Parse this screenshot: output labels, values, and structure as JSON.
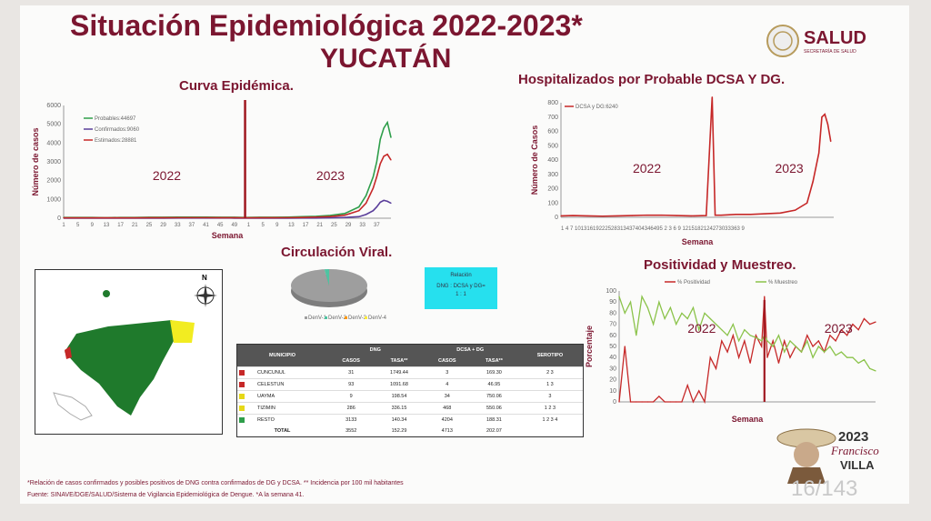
{
  "header": {
    "title_line1": "Situación Epidemiológica 2022-2023*",
    "title_line2": "YUCATÁN",
    "logo_text": "SALUD",
    "logo_subtext": "SECRETARÍA DE SALUD"
  },
  "colors": {
    "brand": "#7b1630",
    "green": "#2e9e4a",
    "red": "#c62828",
    "purple": "#5a3e9a"
  },
  "charts": {
    "curva": {
      "title": "Curva Epidémica.",
      "xlabel": "Semana",
      "ylabel": "Número de casos",
      "year_labels": [
        "2022",
        "2023"
      ],
      "legend": [
        "Probables:44697",
        "Confirmados:9060",
        "Estimados:28881"
      ],
      "yticks": [
        "0",
        "1000",
        "2000",
        "3000",
        "4000",
        "5000",
        "6000"
      ]
    },
    "hosp": {
      "title": "Hospitalizados por Probable DCSA Y DG.",
      "xlabel": "Semana",
      "ylabel": "Número de Casos",
      "legend": [
        "DCSA y DG:6240"
      ],
      "year_labels": [
        "2022",
        "2023"
      ],
      "yticks": [
        "0",
        "100",
        "200",
        "300",
        "400",
        "500",
        "600",
        "700",
        "800"
      ],
      "xticks_text": "1 4 7 10131619222528313437404346495 2 3 6 9 1215182124273033363 9"
    },
    "positividad": {
      "title": "Positividad y Muestreo.",
      "xlabel": "Semana",
      "ylabel": "Porcentaje",
      "legend": [
        "% Positividad",
        "% Muestreo"
      ],
      "year_labels": [
        "2022",
        "2023"
      ],
      "yticks": [
        "0",
        "10",
        "20",
        "30",
        "40",
        "50",
        "60",
        "70",
        "80",
        "90",
        "100"
      ]
    },
    "circulacion": {
      "title": "Circulación Viral.",
      "legend": [
        "DenV-1",
        "DenV-2",
        "DenV-3",
        "DenV-4"
      ]
    }
  },
  "chart_data": [
    {
      "type": "line",
      "title": "Curva Epidémica.",
      "xlabel": "Semana",
      "ylabel": "Número de casos",
      "ylim": [
        0,
        6000
      ],
      "x": [
        1,
        5,
        9,
        13,
        17,
        21,
        25,
        29,
        33,
        37,
        41,
        45,
        49,
        52,
        56,
        60,
        64,
        68,
        72,
        76,
        80,
        84,
        86,
        88,
        89,
        90,
        91,
        92,
        93
      ],
      "series": [
        {
          "name": "Probables:44697",
          "values": [
            40,
            40,
            40,
            30,
            40,
            40,
            50,
            50,
            60,
            60,
            60,
            50,
            50,
            40,
            50,
            50,
            60,
            80,
            100,
            150,
            250,
            600,
            1200,
            2200,
            3000,
            4200,
            4800,
            5100,
            4300
          ]
        },
        {
          "name": "Confirmados:9060",
          "values": [
            5,
            5,
            5,
            5,
            5,
            5,
            5,
            5,
            10,
            10,
            10,
            10,
            5,
            5,
            5,
            5,
            5,
            10,
            10,
            20,
            40,
            80,
            200,
            400,
            600,
            850,
            950,
            900,
            800
          ]
        },
        {
          "name": "Estimados:28881",
          "values": [
            20,
            20,
            20,
            20,
            20,
            20,
            25,
            25,
            30,
            30,
            30,
            25,
            25,
            20,
            25,
            25,
            30,
            40,
            60,
            90,
            160,
            400,
            800,
            1600,
            2200,
            2900,
            3300,
            3400,
            3100
          ]
        }
      ]
    },
    {
      "type": "line",
      "title": "Hospitalizados por Probable DCSA Y DG.",
      "xlabel": "Semana",
      "ylabel": "Número de Casos",
      "ylim": [
        0,
        800
      ],
      "x": [
        1,
        5,
        10,
        15,
        20,
        25,
        30,
        35,
        40,
        45,
        50,
        52,
        53,
        55,
        60,
        65,
        70,
        75,
        80,
        84,
        86,
        88,
        89,
        90,
        91,
        92
      ],
      "series": [
        {
          "name": "DCSA y DG:6240",
          "values": [
            10,
            12,
            10,
            8,
            10,
            12,
            15,
            15,
            12,
            10,
            12,
            840,
            15,
            15,
            20,
            20,
            25,
            30,
            50,
            100,
            250,
            450,
            700,
            720,
            650,
            530
          ]
        }
      ]
    },
    {
      "type": "line",
      "title": "Positividad y Muestreo.",
      "xlabel": "Semana",
      "ylabel": "Porcentaje",
      "ylim": [
        0,
        100
      ],
      "x": [
        1,
        3,
        5,
        7,
        9,
        11,
        13,
        15,
        17,
        19,
        21,
        23,
        25,
        27,
        29,
        31,
        33,
        35,
        37,
        39,
        41,
        43,
        45,
        47,
        49,
        51,
        52,
        53,
        55,
        57,
        59,
        61,
        63,
        65,
        67,
        69,
        71,
        73,
        75,
        77,
        79,
        81,
        83,
        85,
        87,
        89,
        91
      ],
      "series": [
        {
          "name": "% Positividad",
          "values": [
            0,
            50,
            0,
            0,
            0,
            0,
            0,
            5,
            0,
            0,
            0,
            0,
            15,
            0,
            10,
            0,
            40,
            30,
            55,
            45,
            60,
            40,
            55,
            35,
            60,
            50,
            95,
            40,
            55,
            35,
            55,
            40,
            50,
            45,
            60,
            50,
            55,
            45,
            60,
            55,
            65,
            60,
            70,
            65,
            75,
            70,
            72
          ]
        },
        {
          "name": "% Muestreo",
          "values": [
            95,
            80,
            90,
            60,
            95,
            85,
            70,
            90,
            75,
            85,
            70,
            80,
            75,
            85,
            65,
            80,
            75,
            70,
            65,
            60,
            70,
            55,
            65,
            60,
            58,
            55,
            60,
            55,
            50,
            60,
            45,
            55,
            50,
            45,
            55,
            40,
            50,
            45,
            50,
            42,
            45,
            40,
            40,
            35,
            38,
            30,
            28
          ]
        }
      ]
    },
    {
      "type": "pie",
      "title": "Circulación Viral.",
      "categories": [
        "DenV-1",
        "DenV-2",
        "DenV-3",
        "DenV-4"
      ],
      "values": [
        98,
        2,
        0,
        0
      ]
    }
  ],
  "relacion_box": {
    "title": "Relación",
    "line1": "DNG : DCSA y DG=",
    "line2": "1 : 1"
  },
  "map": {
    "north_label": "N"
  },
  "table": {
    "headers": {
      "municipio": "MUNICIPIO",
      "dng": "DNG",
      "dcsa": "DCSA + DG",
      "serotipo": "SEROTIPO",
      "casos": "CASOS",
      "tasa": "TASA**"
    },
    "rows": [
      {
        "color": "#c62828",
        "municipio": "CUNCUNUL",
        "dng_casos": "31",
        "dng_tasa": "1749.44",
        "dcsa_casos": "3",
        "dcsa_tasa": "169.30",
        "serotipo": "2  3"
      },
      {
        "color": "#c62828",
        "municipio": "CELESTUN",
        "dng_casos": "93",
        "dng_tasa": "1091.68",
        "dcsa_casos": "4",
        "dcsa_tasa": "46.95",
        "serotipo": "1  3"
      },
      {
        "color": "#e6d817",
        "municipio": "UAYMA",
        "dng_casos": "9",
        "dng_tasa": "198.54",
        "dcsa_casos": "34",
        "dcsa_tasa": "750.06",
        "serotipo": "3"
      },
      {
        "color": "#e6d817",
        "municipio": "TIZIMIN",
        "dng_casos": "286",
        "dng_tasa": "336.15",
        "dcsa_casos": "468",
        "dcsa_tasa": "550.06",
        "serotipo": "1  2  3"
      },
      {
        "color": "#2e9e4a",
        "municipio": "RESTO",
        "dng_casos": "3133",
        "dng_tasa": "140.34",
        "dcsa_casos": "4204",
        "dcsa_tasa": "188.31",
        "serotipo": "1  2  3  4"
      }
    ],
    "total": {
      "label": "TOTAL",
      "dng_casos": "3552",
      "dng_tasa": "152.29",
      "dcsa_casos": "4713",
      "dcsa_tasa": "202.07"
    }
  },
  "footer": {
    "note1": "*Relación de casos confirmados y posibles positivos de DNG contra confirmados de DG y DCSA. ** Incidencia por 100 mil habitantes",
    "note2": "Fuente: SINAVE/DGE/SALUD/Sistema de Vigilancia Epidemiológica de Dengue. *A la semana 41.",
    "page": "16/143"
  },
  "villa": {
    "year": "2023",
    "name1": "Francisco",
    "name2": "VILLA"
  }
}
